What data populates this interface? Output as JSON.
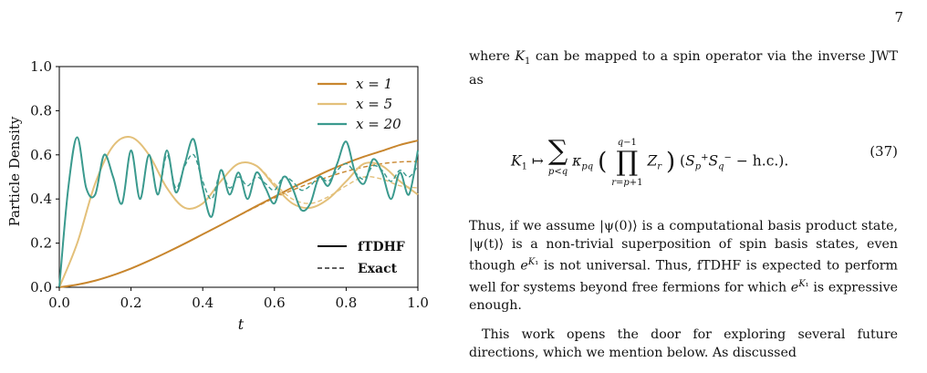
{
  "page_number": "7",
  "chart_data": {
    "type": "line",
    "xlabel": "t",
    "ylabel": "Particle Density",
    "xlim": [
      0.0,
      1.0
    ],
    "ylim": [
      0.0,
      1.0
    ],
    "x_ticks": [
      "0.0",
      "0.2",
      "0.4",
      "0.6",
      "0.8",
      "1.0"
    ],
    "y_ticks": [
      "0.0",
      "0.2",
      "0.4",
      "0.6",
      "0.8",
      "1.0"
    ],
    "grid": false,
    "legend_top": {
      "placement": "top-right",
      "entries": [
        "x = 1",
        "x = 5",
        "x = 20"
      ]
    },
    "legend_bottom": {
      "placement": "bottom-right",
      "entries": [
        "fTDHF",
        "Exact"
      ]
    },
    "colors": {
      "x1": "#c8862e",
      "x5": "#e3c07a",
      "x20": "#3b9a8e"
    },
    "series": [
      {
        "name": "x = 1",
        "style": "fTDHF",
        "x": [
          0,
          0.05,
          0.1,
          0.15,
          0.2,
          0.25,
          0.3,
          0.35,
          0.4,
          0.45,
          0.5,
          0.55,
          0.6,
          0.65,
          0.7,
          0.75,
          0.8,
          0.85,
          0.9,
          0.95,
          1.0
        ],
        "y": [
          0,
          0.012,
          0.03,
          0.055,
          0.085,
          0.12,
          0.158,
          0.198,
          0.24,
          0.282,
          0.325,
          0.368,
          0.41,
          0.452,
          0.49,
          0.528,
          0.562,
          0.592,
          0.618,
          0.645,
          0.665
        ]
      },
      {
        "name": "x = 1",
        "style": "Exact",
        "x": [
          0,
          0.05,
          0.1,
          0.15,
          0.2,
          0.25,
          0.3,
          0.35,
          0.4,
          0.45,
          0.5,
          0.55,
          0.6,
          0.65,
          0.7,
          0.75,
          0.8,
          0.85,
          0.9,
          0.95,
          1.0
        ],
        "y": [
          0,
          0.012,
          0.03,
          0.055,
          0.085,
          0.12,
          0.158,
          0.198,
          0.24,
          0.282,
          0.324,
          0.365,
          0.405,
          0.44,
          0.472,
          0.5,
          0.525,
          0.545,
          0.56,
          0.568,
          0.57
        ]
      },
      {
        "name": "x = 5",
        "style": "fTDHF",
        "x": [
          0,
          0.05,
          0.1,
          0.15,
          0.2,
          0.25,
          0.3,
          0.35,
          0.4,
          0.45,
          0.5,
          0.55,
          0.6,
          0.65,
          0.7,
          0.75,
          0.8,
          0.85,
          0.9,
          0.95,
          1.0
        ],
        "y": [
          0,
          0.2,
          0.47,
          0.64,
          0.68,
          0.6,
          0.45,
          0.36,
          0.38,
          0.48,
          0.56,
          0.55,
          0.46,
          0.38,
          0.36,
          0.4,
          0.48,
          0.56,
          0.55,
          0.48,
          0.42
        ]
      },
      {
        "name": "x = 5",
        "style": "Exact",
        "x": [
          0,
          0.05,
          0.1,
          0.15,
          0.2,
          0.25,
          0.3,
          0.35,
          0.4,
          0.45,
          0.5,
          0.55,
          0.6,
          0.65,
          0.7,
          0.75,
          0.8,
          0.85,
          0.9,
          0.95,
          1.0
        ],
        "y": [
          0,
          0.2,
          0.47,
          0.64,
          0.68,
          0.6,
          0.45,
          0.36,
          0.38,
          0.48,
          0.56,
          0.55,
          0.47,
          0.4,
          0.38,
          0.41,
          0.46,
          0.5,
          0.49,
          0.46,
          0.45
        ]
      },
      {
        "name": "x = 20",
        "style": "fTDHF",
        "x": [
          0,
          0.025,
          0.05,
          0.075,
          0.1,
          0.125,
          0.15,
          0.175,
          0.2,
          0.225,
          0.25,
          0.275,
          0.3,
          0.325,
          0.35,
          0.375,
          0.4,
          0.425,
          0.45,
          0.475,
          0.5,
          0.525,
          0.55,
          0.575,
          0.6,
          0.625,
          0.65,
          0.675,
          0.7,
          0.725,
          0.75,
          0.775,
          0.8,
          0.825,
          0.85,
          0.875,
          0.9,
          0.925,
          0.95,
          0.975,
          1.0
        ],
        "y": [
          0,
          0.45,
          0.68,
          0.45,
          0.42,
          0.6,
          0.5,
          0.38,
          0.62,
          0.4,
          0.6,
          0.42,
          0.62,
          0.43,
          0.56,
          0.67,
          0.45,
          0.32,
          0.53,
          0.42,
          0.52,
          0.4,
          0.52,
          0.45,
          0.38,
          0.5,
          0.45,
          0.35,
          0.38,
          0.5,
          0.46,
          0.56,
          0.66,
          0.52,
          0.47,
          0.58,
          0.52,
          0.4,
          0.52,
          0.42,
          0.62
        ]
      },
      {
        "name": "x = 20",
        "style": "Exact",
        "x": [
          0,
          0.025,
          0.05,
          0.075,
          0.1,
          0.125,
          0.15,
          0.175,
          0.2,
          0.225,
          0.25,
          0.275,
          0.3,
          0.325,
          0.35,
          0.375,
          0.4,
          0.425,
          0.45,
          0.475,
          0.5,
          0.525,
          0.55,
          0.575,
          0.6,
          0.625,
          0.65,
          0.675,
          0.7,
          0.725,
          0.75,
          0.775,
          0.8,
          0.825,
          0.85,
          0.875,
          0.9,
          0.925,
          0.95,
          0.975,
          1.0
        ],
        "y": [
          0,
          0.45,
          0.68,
          0.45,
          0.42,
          0.6,
          0.5,
          0.38,
          0.62,
          0.4,
          0.6,
          0.42,
          0.6,
          0.45,
          0.55,
          0.6,
          0.48,
          0.4,
          0.52,
          0.45,
          0.5,
          0.46,
          0.5,
          0.47,
          0.44,
          0.5,
          0.48,
          0.44,
          0.46,
          0.5,
          0.48,
          0.53,
          0.56,
          0.52,
          0.49,
          0.55,
          0.53,
          0.48,
          0.53,
          0.5,
          0.55
        ]
      }
    ]
  },
  "text": {
    "para1_pre": "where ",
    "para1_k1": "K",
    "para1_sub": "1",
    "para1_post": " can be mapped to a spin operator via the inverse JWT as",
    "equation_number": "(37)",
    "para2": "Thus, if we assume |ψ(0)⟩ is a computational basis product state, |ψ(t)⟩ is a non-trivial superposition of spin basis states, even though e^{K₁} is not universal. Thus, fTDHF is expected to perform well for systems beyond free fermions for which e^{K₁} is expressive enough.",
    "para2_a": "Thus, if we assume |ψ(0)⟩ is a computational basis product state, |ψ(t)⟩ is a non-trivial superposition of spin basis states, even though ",
    "para2_b": " is not universal. Thus, fTDHF is expected to perform well for systems beyond free fermions for which ",
    "para2_c": " is expressive enough.",
    "para3": "This work opens the door for exploring several future directions, which we mention below. As discussed"
  }
}
